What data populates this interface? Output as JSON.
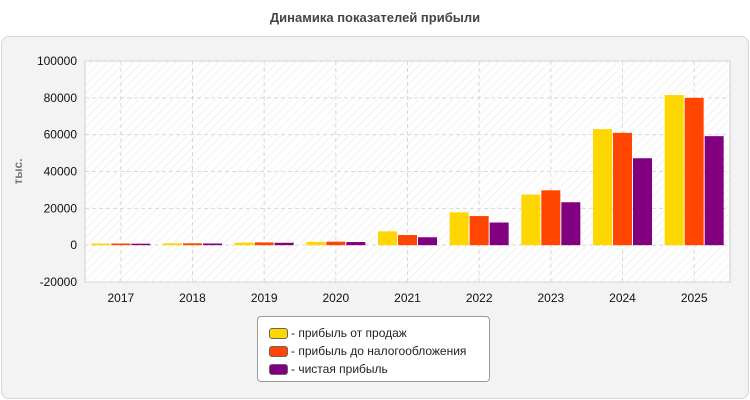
{
  "chart_data": {
    "type": "bar",
    "title": "Динамика показателей прибыли",
    "ylabel": "тыс.",
    "xlabel": "",
    "ylim": [
      -20000,
      100000
    ],
    "yticks": [
      -20000,
      0,
      20000,
      40000,
      60000,
      80000,
      100000
    ],
    "categories": [
      "2017",
      "2018",
      "2019",
      "2020",
      "2021",
      "2022",
      "2023",
      "2024",
      "2025"
    ],
    "grid": true,
    "legend_position": "bottom",
    "series": [
      {
        "name": "- прибыль от продаж",
        "color": "#ffd700",
        "values": [
          900,
          1000,
          1400,
          1800,
          7500,
          17800,
          27500,
          63000,
          81500
        ]
      },
      {
        "name": "- прибыль до налогообложения",
        "color": "#ff4500",
        "values": [
          900,
          1000,
          1500,
          1900,
          5500,
          15800,
          29800,
          61000,
          80000
        ]
      },
      {
        "name": "- чистая прибыль",
        "color": "#800080",
        "values": [
          800,
          900,
          1300,
          1700,
          4300,
          12300,
          23300,
          47200,
          59200
        ]
      }
    ]
  }
}
